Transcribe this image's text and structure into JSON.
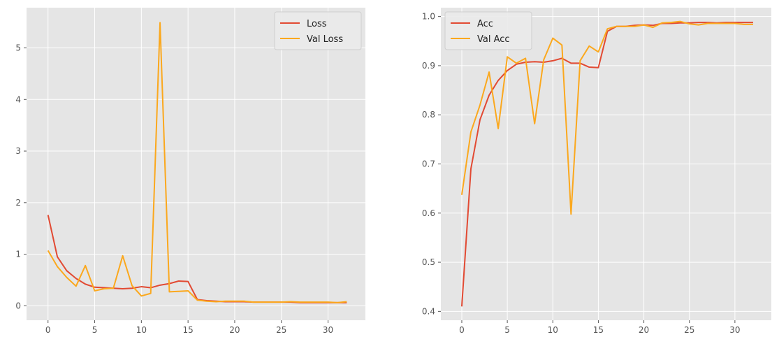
{
  "colors": {
    "plot_background": "#e5e5e5",
    "grid": "#ffffff",
    "tick_text": "#555555",
    "series_primary": "#e24a33",
    "series_secondary": "#fba81d"
  },
  "chart_data": [
    {
      "type": "line",
      "title": "",
      "xlabel": "",
      "ylabel": "",
      "grid": true,
      "legend_position": "upper right",
      "xlim": [
        -2.3,
        34.0
      ],
      "ylim": [
        -0.28,
        5.78
      ],
      "xticks": [
        0,
        5,
        10,
        15,
        20,
        25,
        30
      ],
      "yticks": [
        0,
        1,
        2,
        3,
        4,
        5
      ],
      "x": [
        0,
        1,
        2,
        3,
        4,
        5,
        6,
        7,
        8,
        9,
        10,
        11,
        12,
        13,
        14,
        15,
        16,
        17,
        18,
        19,
        20,
        21,
        22,
        23,
        24,
        25,
        26,
        27,
        28,
        29,
        30,
        31,
        32
      ],
      "series": [
        {
          "name": "Loss",
          "color": "#e24a33",
          "values": [
            1.76,
            0.95,
            0.68,
            0.53,
            0.42,
            0.36,
            0.35,
            0.34,
            0.33,
            0.34,
            0.37,
            0.35,
            0.4,
            0.43,
            0.48,
            0.47,
            0.12,
            0.1,
            0.09,
            0.08,
            0.08,
            0.08,
            0.07,
            0.07,
            0.07,
            0.07,
            0.07,
            0.06,
            0.06,
            0.06,
            0.06,
            0.06,
            0.06
          ]
        },
        {
          "name": "Val Loss",
          "color": "#fba81d",
          "values": [
            1.07,
            0.76,
            0.55,
            0.38,
            0.78,
            0.29,
            0.33,
            0.34,
            0.97,
            0.39,
            0.19,
            0.24,
            5.49,
            0.27,
            0.28,
            0.29,
            0.11,
            0.09,
            0.08,
            0.09,
            0.09,
            0.09,
            0.07,
            0.07,
            0.07,
            0.07,
            0.08,
            0.07,
            0.07,
            0.07,
            0.07,
            0.06,
            0.08
          ]
        }
      ]
    },
    {
      "type": "line",
      "title": "",
      "xlabel": "",
      "ylabel": "",
      "grid": true,
      "legend_position": "upper left",
      "xlim": [
        -2.3,
        34.0
      ],
      "ylim": [
        0.382,
        1.018
      ],
      "xticks": [
        0,
        5,
        10,
        15,
        20,
        25,
        30
      ],
      "yticks": [
        0.4,
        0.5,
        0.6,
        0.7,
        0.8,
        0.9,
        1.0
      ],
      "ytick_labels": [
        "0.4",
        "0.5",
        "0.6",
        "0.7",
        "0.8",
        "0.9",
        "1.0"
      ],
      "x": [
        0,
        1,
        2,
        3,
        4,
        5,
        6,
        7,
        8,
        9,
        10,
        11,
        12,
        13,
        14,
        15,
        16,
        17,
        18,
        19,
        20,
        21,
        22,
        23,
        24,
        25,
        26,
        27,
        28,
        29,
        30,
        31,
        32
      ],
      "series": [
        {
          "name": "Acc",
          "color": "#e24a33",
          "values": [
            0.41,
            0.69,
            0.79,
            0.84,
            0.87,
            0.89,
            0.903,
            0.907,
            0.908,
            0.907,
            0.91,
            0.915,
            0.905,
            0.905,
            0.897,
            0.896,
            0.97,
            0.98,
            0.98,
            0.982,
            0.983,
            0.982,
            0.986,
            0.986,
            0.987,
            0.987,
            0.988,
            0.988,
            0.987,
            0.988,
            0.988,
            0.988,
            0.988
          ]
        },
        {
          "name": "Val Acc",
          "color": "#fba81d",
          "values": [
            0.637,
            0.765,
            0.82,
            0.887,
            0.772,
            0.918,
            0.905,
            0.915,
            0.782,
            0.912,
            0.956,
            0.942,
            0.598,
            0.91,
            0.94,
            0.928,
            0.975,
            0.98,
            0.98,
            0.98,
            0.983,
            0.978,
            0.987,
            0.988,
            0.99,
            0.985,
            0.983,
            0.986,
            0.986,
            0.986,
            0.986,
            0.984,
            0.984
          ]
        }
      ]
    }
  ]
}
